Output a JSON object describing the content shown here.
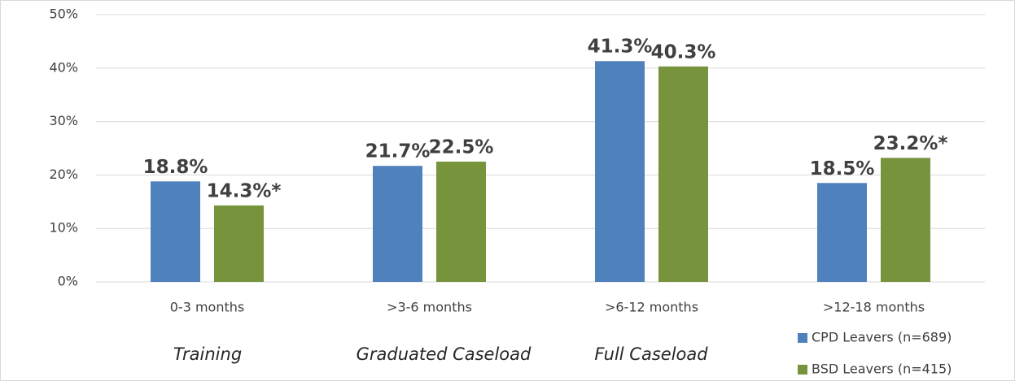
{
  "chart_data": {
    "type": "bar",
    "categories": [
      "0-3 months",
      ">3-6 months",
      ">6-12 months",
      ">12-18 months"
    ],
    "series": [
      {
        "name": "CPD Leavers (n=689)",
        "color": "#4f81bd",
        "values": [
          18.8,
          21.7,
          41.3,
          18.5
        ],
        "value_labels": [
          "18.8%",
          "21.7%",
          "41.3%",
          "18.5%"
        ]
      },
      {
        "name": "BSD Leavers (n=415)",
        "color": "#77933c",
        "values": [
          14.3,
          22.5,
          40.3,
          23.2
        ],
        "value_labels": [
          "14.3%*",
          "22.5%",
          "40.3%",
          "23.2%*"
        ]
      }
    ],
    "annotations": [
      "Training",
      "Graduated Caseload",
      "Full Caseload"
    ],
    "ylim": [
      0,
      50
    ],
    "yticks": [
      {
        "value": 0,
        "label": "0%"
      },
      {
        "value": 10,
        "label": "10%"
      },
      {
        "value": 20,
        "label": "20%"
      },
      {
        "value": 30,
        "label": "30%"
      },
      {
        "value": 40,
        "label": "40%"
      },
      {
        "value": 50,
        "label": "50%"
      }
    ],
    "grid": true,
    "legend": "bottom-right"
  }
}
